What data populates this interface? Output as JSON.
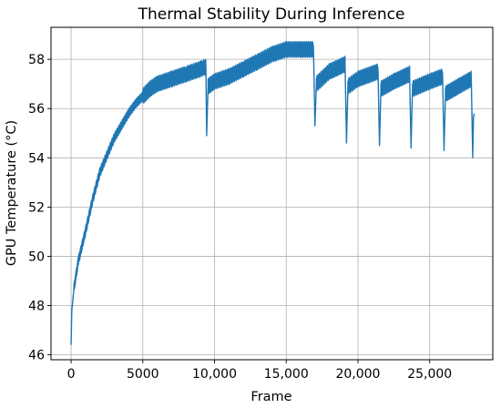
{
  "chart_data": {
    "type": "line",
    "title": "Thermal Stability During Inference",
    "xlabel": "Frame",
    "ylabel": "GPU Temperature (°C)",
    "xlim": [
      -1400,
      29400
    ],
    "ylim": [
      45.8,
      59.3
    ],
    "x_ticks": [
      {
        "value": 0,
        "label": "0"
      },
      {
        "value": 5000,
        "label": "5000"
      },
      {
        "value": 10000,
        "label": "10,000"
      },
      {
        "value": 15000,
        "label": "15,000"
      },
      {
        "value": 20000,
        "label": "20,000"
      },
      {
        "value": 25000,
        "label": "25,000"
      }
    ],
    "y_ticks": [
      {
        "value": 46,
        "label": "46"
      },
      {
        "value": 48,
        "label": "48"
      },
      {
        "value": 50,
        "label": "50"
      },
      {
        "value": 52,
        "label": "52"
      },
      {
        "value": 54,
        "label": "54"
      },
      {
        "value": 56,
        "label": "56"
      },
      {
        "value": 58,
        "label": "58"
      }
    ],
    "grid": true,
    "series": [
      {
        "color": "#1f77b4",
        "points": [
          [
            0,
            46.4
          ],
          [
            50,
            47.8
          ],
          [
            200,
            48.7
          ],
          [
            500,
            49.8
          ],
          [
            1000,
            51.0
          ],
          [
            1500,
            52.3
          ],
          [
            2000,
            53.4
          ],
          [
            2500,
            54.1
          ],
          [
            3000,
            54.8
          ],
          [
            3500,
            55.3
          ],
          [
            4000,
            55.8
          ],
          [
            4500,
            56.2
          ],
          [
            5000,
            56.5
          ],
          [
            5500,
            56.8
          ],
          [
            6000,
            57.0
          ],
          [
            7000,
            57.2
          ],
          [
            8000,
            57.4
          ],
          [
            9000,
            57.6
          ],
          [
            9400,
            57.7
          ],
          [
            9450,
            54.9
          ],
          [
            9550,
            56.9
          ],
          [
            10000,
            57.1
          ],
          [
            11000,
            57.3
          ],
          [
            12000,
            57.6
          ],
          [
            13000,
            57.9
          ],
          [
            14000,
            58.2
          ],
          [
            15000,
            58.4
          ],
          [
            16000,
            58.4
          ],
          [
            16900,
            58.4
          ],
          [
            17000,
            55.3
          ],
          [
            17100,
            57.0
          ],
          [
            18000,
            57.5
          ],
          [
            19100,
            57.8
          ],
          [
            19200,
            54.6
          ],
          [
            19300,
            56.9
          ],
          [
            20000,
            57.2
          ],
          [
            21400,
            57.5
          ],
          [
            21500,
            54.5
          ],
          [
            21600,
            56.8
          ],
          [
            22500,
            57.1
          ],
          [
            23600,
            57.4
          ],
          [
            23700,
            54.4
          ],
          [
            23800,
            56.8
          ],
          [
            25000,
            57.1
          ],
          [
            25900,
            57.3
          ],
          [
            26000,
            54.3
          ],
          [
            26100,
            56.6
          ],
          [
            27000,
            56.9
          ],
          [
            27900,
            57.2
          ],
          [
            28000,
            54.0
          ],
          [
            28050,
            55.6
          ],
          [
            28100,
            55.8
          ]
        ]
      }
    ]
  }
}
